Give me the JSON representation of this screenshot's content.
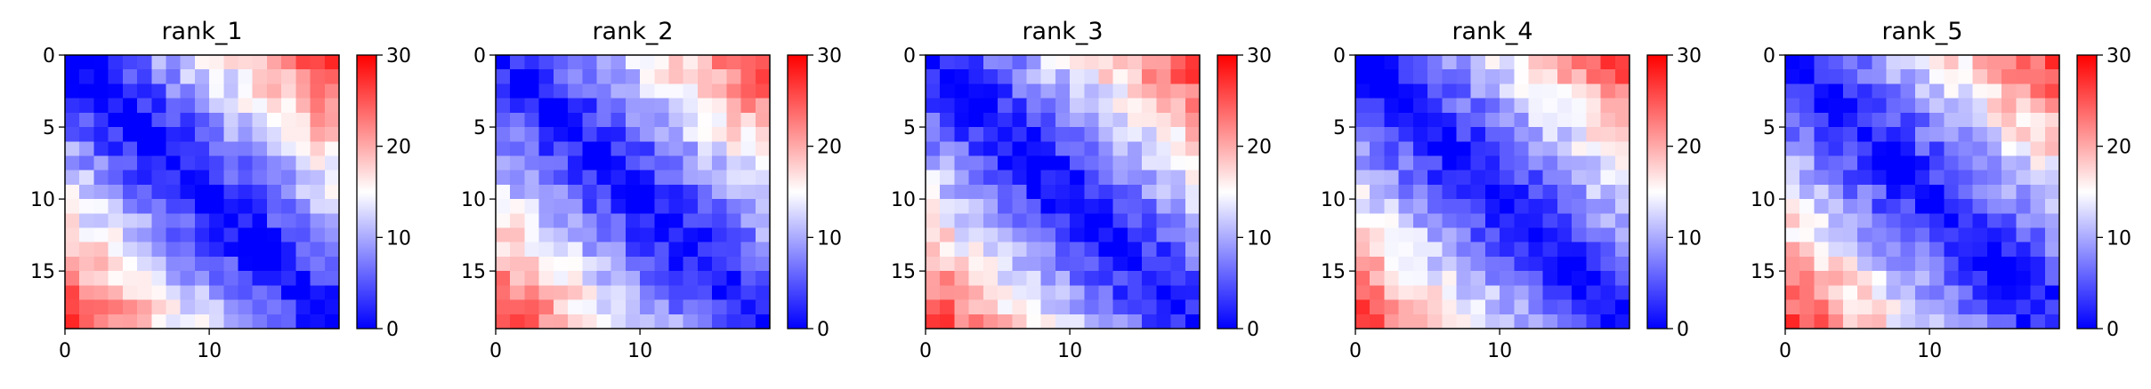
{
  "chart_data": [
    {
      "type": "heatmap",
      "title": "rank_1",
      "x_ticks": [
        0,
        10
      ],
      "y_ticks": [
        0,
        5,
        10,
        15
      ],
      "n": 19,
      "colorbar": {
        "ticks": [
          0,
          10,
          20,
          30
        ],
        "min": 0,
        "max": 30,
        "cmap": "bwr"
      }
    },
    {
      "type": "heatmap",
      "title": "rank_2",
      "x_ticks": [
        0,
        10
      ],
      "y_ticks": [
        0,
        5,
        10,
        15
      ],
      "n": 19,
      "colorbar": {
        "ticks": [
          0,
          10,
          20,
          30
        ],
        "min": 0,
        "max": 30,
        "cmap": "bwr"
      }
    },
    {
      "type": "heatmap",
      "title": "rank_3",
      "x_ticks": [
        0,
        10
      ],
      "y_ticks": [
        0,
        5,
        10,
        15
      ],
      "n": 19,
      "colorbar": {
        "ticks": [
          0,
          10,
          20,
          30
        ],
        "min": 0,
        "max": 30,
        "cmap": "bwr"
      }
    },
    {
      "type": "heatmap",
      "title": "rank_4",
      "x_ticks": [
        0,
        10
      ],
      "y_ticks": [
        0,
        5,
        10,
        15
      ],
      "n": 19,
      "colorbar": {
        "ticks": [
          0,
          10,
          20,
          30
        ],
        "min": 0,
        "max": 30,
        "cmap": "bwr"
      }
    },
    {
      "type": "heatmap",
      "title": "rank_5",
      "x_ticks": [
        0,
        10
      ],
      "y_ticks": [
        0,
        5,
        10,
        15
      ],
      "n": 19,
      "colorbar": {
        "ticks": [
          0,
          10,
          20,
          30
        ],
        "min": 0,
        "max": 30,
        "cmap": "bwr"
      }
    }
  ],
  "colors": {
    "cmap_low": "#0000ff",
    "cmap_mid": "#ffffff",
    "cmap_high": "#ff0000"
  }
}
